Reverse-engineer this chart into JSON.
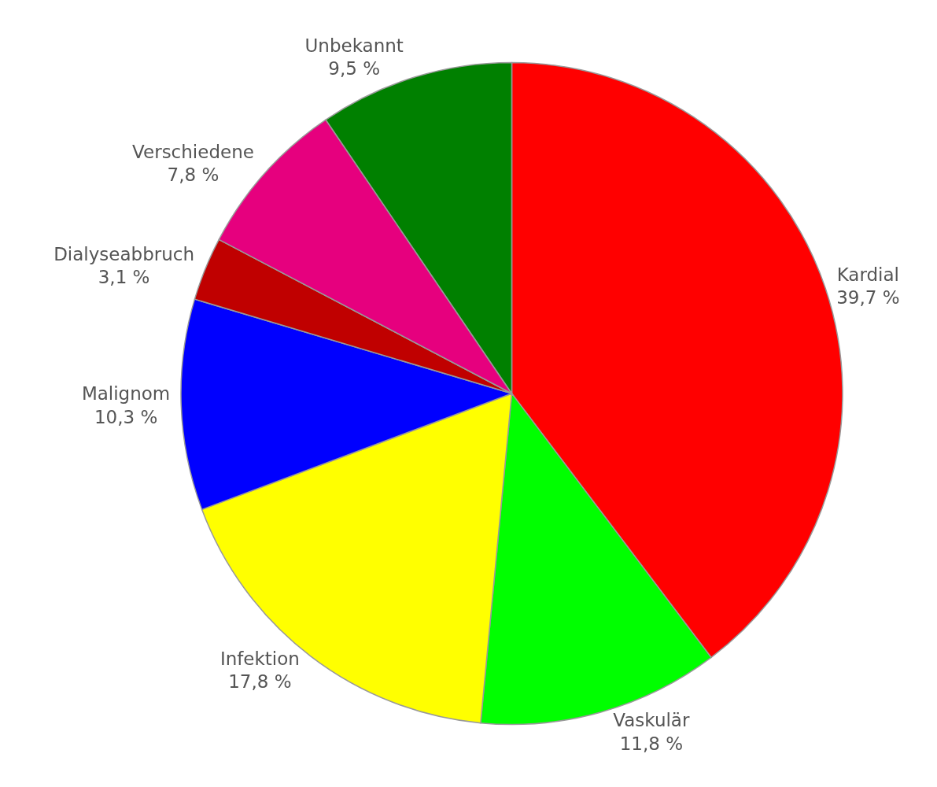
{
  "chart_data": {
    "type": "pie",
    "categories": [
      "Kardial",
      "Vaskulär",
      "Infektion",
      "Malignom",
      "Dialyseabbruch",
      "Verschiedene",
      "Unbekannt"
    ],
    "values": [
      39.7,
      11.8,
      17.8,
      10.3,
      3.1,
      7.8,
      9.5
    ],
    "value_labels": [
      "39,7 %",
      "11,8 %",
      "17,8 %",
      "10,3 %",
      "3,1 %",
      "7,8 %",
      "9,5 %"
    ],
    "colors": [
      "#ff0000",
      "#00ff00",
      "#ffff00",
      "#0000ff",
      "#c00000",
      "#e6007e",
      "#008000"
    ]
  }
}
